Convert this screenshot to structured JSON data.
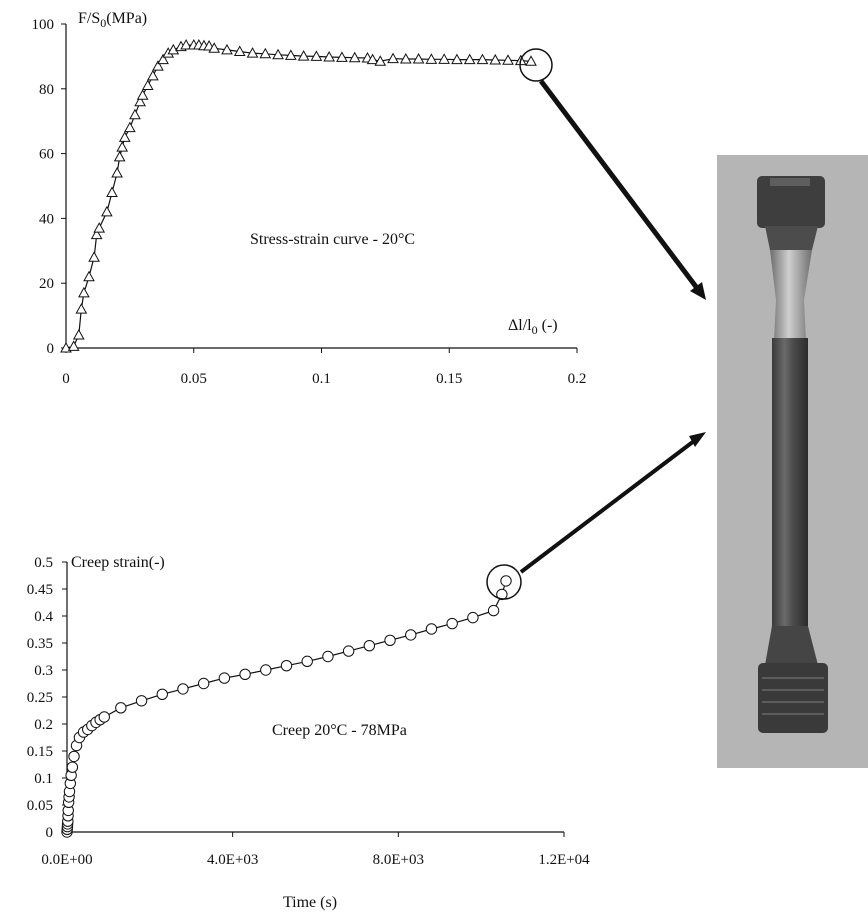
{
  "chart_data": [
    {
      "type": "line",
      "marker": "triangle",
      "annotation": "Stress-strain curve - 20°C",
      "ylabel_main": "F/S",
      "ylabel_sub": "0",
      "ylabel_unit": "(MPa)",
      "xlabel_main": "Δl/l",
      "xlabel_sub": "0",
      "xlabel_unit": " (-)",
      "xlim": [
        0,
        0.2
      ],
      "ylim": [
        0,
        100
      ],
      "xticks": [
        0,
        0.05,
        0.1,
        0.15,
        0.2
      ],
      "xtick_labels": [
        "0",
        "0.05",
        "0.1",
        "0.15",
        "0.2"
      ],
      "yticks": [
        0,
        20,
        40,
        60,
        80,
        100
      ],
      "ytick_labels": [
        "0",
        "20",
        "40",
        "60",
        "80",
        "100"
      ],
      "grid": false,
      "x": [
        0,
        0.003,
        0.005,
        0.006,
        0.007,
        0.009,
        0.011,
        0.012,
        0.013,
        0.016,
        0.018,
        0.02,
        0.021,
        0.022,
        0.023,
        0.025,
        0.027,
        0.029,
        0.03,
        0.032,
        0.034,
        0.036,
        0.038,
        0.04,
        0.042,
        0.045,
        0.047,
        0.05,
        0.052,
        0.054,
        0.056,
        0.058,
        0.063,
        0.068,
        0.073,
        0.078,
        0.083,
        0.088,
        0.093,
        0.098,
        0.103,
        0.108,
        0.113,
        0.118,
        0.12,
        0.123,
        0.128,
        0.133,
        0.138,
        0.143,
        0.148,
        0.153,
        0.158,
        0.163,
        0.168,
        0.173,
        0.178,
        0.182
      ],
      "y": [
        0,
        0.5,
        4,
        12,
        17,
        22,
        28,
        35,
        37,
        42,
        48,
        54,
        59,
        62,
        65,
        68,
        72,
        76,
        78,
        81,
        84,
        87,
        89,
        91,
        92,
        93,
        93.5,
        93.5,
        93.5,
        93.3,
        93.2,
        92.5,
        92,
        91.5,
        91,
        90.8,
        90.5,
        90.3,
        90.1,
        90,
        89.8,
        89.7,
        89.6,
        89.5,
        89,
        88.5,
        89.3,
        89.2,
        89.2,
        89.1,
        89.1,
        89,
        89,
        89,
        88.9,
        88.8,
        88.7,
        88.5
      ]
    },
    {
      "type": "line",
      "marker": "circle",
      "annotation": "Creep 20°C - 78MPa",
      "ylabel": "Creep strain(-)",
      "xlabel": "Time (s)",
      "xlim": [
        0,
        12000
      ],
      "ylim": [
        0,
        0.5
      ],
      "xticks": [
        0,
        4000,
        8000,
        12000
      ],
      "xtick_labels": [
        "0.0E+00",
        "4.0E+03",
        "8.0E+03",
        "1.2E+04"
      ],
      "yticks": [
        0,
        0.05,
        0.1,
        0.15,
        0.2,
        0.25,
        0.3,
        0.35,
        0.4,
        0.45,
        0.5
      ],
      "ytick_labels": [
        "0",
        "0.05",
        "0.1",
        "0.15",
        "0.2",
        "0.25",
        "0.3",
        "0.35",
        "0.4",
        "0.45",
        "0.5"
      ],
      "grid": false,
      "x": [
        0,
        5,
        10,
        15,
        20,
        25,
        30,
        40,
        50,
        60,
        80,
        100,
        130,
        170,
        230,
        300,
        400,
        500,
        600,
        700,
        800,
        900,
        1300,
        1800,
        2300,
        2800,
        3300,
        3800,
        4300,
        4800,
        5300,
        5800,
        6300,
        6800,
        7300,
        7800,
        8300,
        8800,
        9300,
        9800,
        10300,
        10500,
        10600
      ],
      "y": [
        0,
        0.005,
        0.01,
        0.015,
        0.02,
        0.03,
        0.04,
        0.055,
        0.065,
        0.075,
        0.09,
        0.105,
        0.12,
        0.14,
        0.16,
        0.175,
        0.185,
        0.19,
        0.197,
        0.203,
        0.208,
        0.213,
        0.23,
        0.243,
        0.255,
        0.265,
        0.275,
        0.285,
        0.292,
        0.3,
        0.308,
        0.316,
        0.325,
        0.335,
        0.345,
        0.355,
        0.365,
        0.376,
        0.386,
        0.397,
        0.41,
        0.44,
        0.465
      ]
    }
  ],
  "photo": {
    "name": "specimen-photo"
  }
}
